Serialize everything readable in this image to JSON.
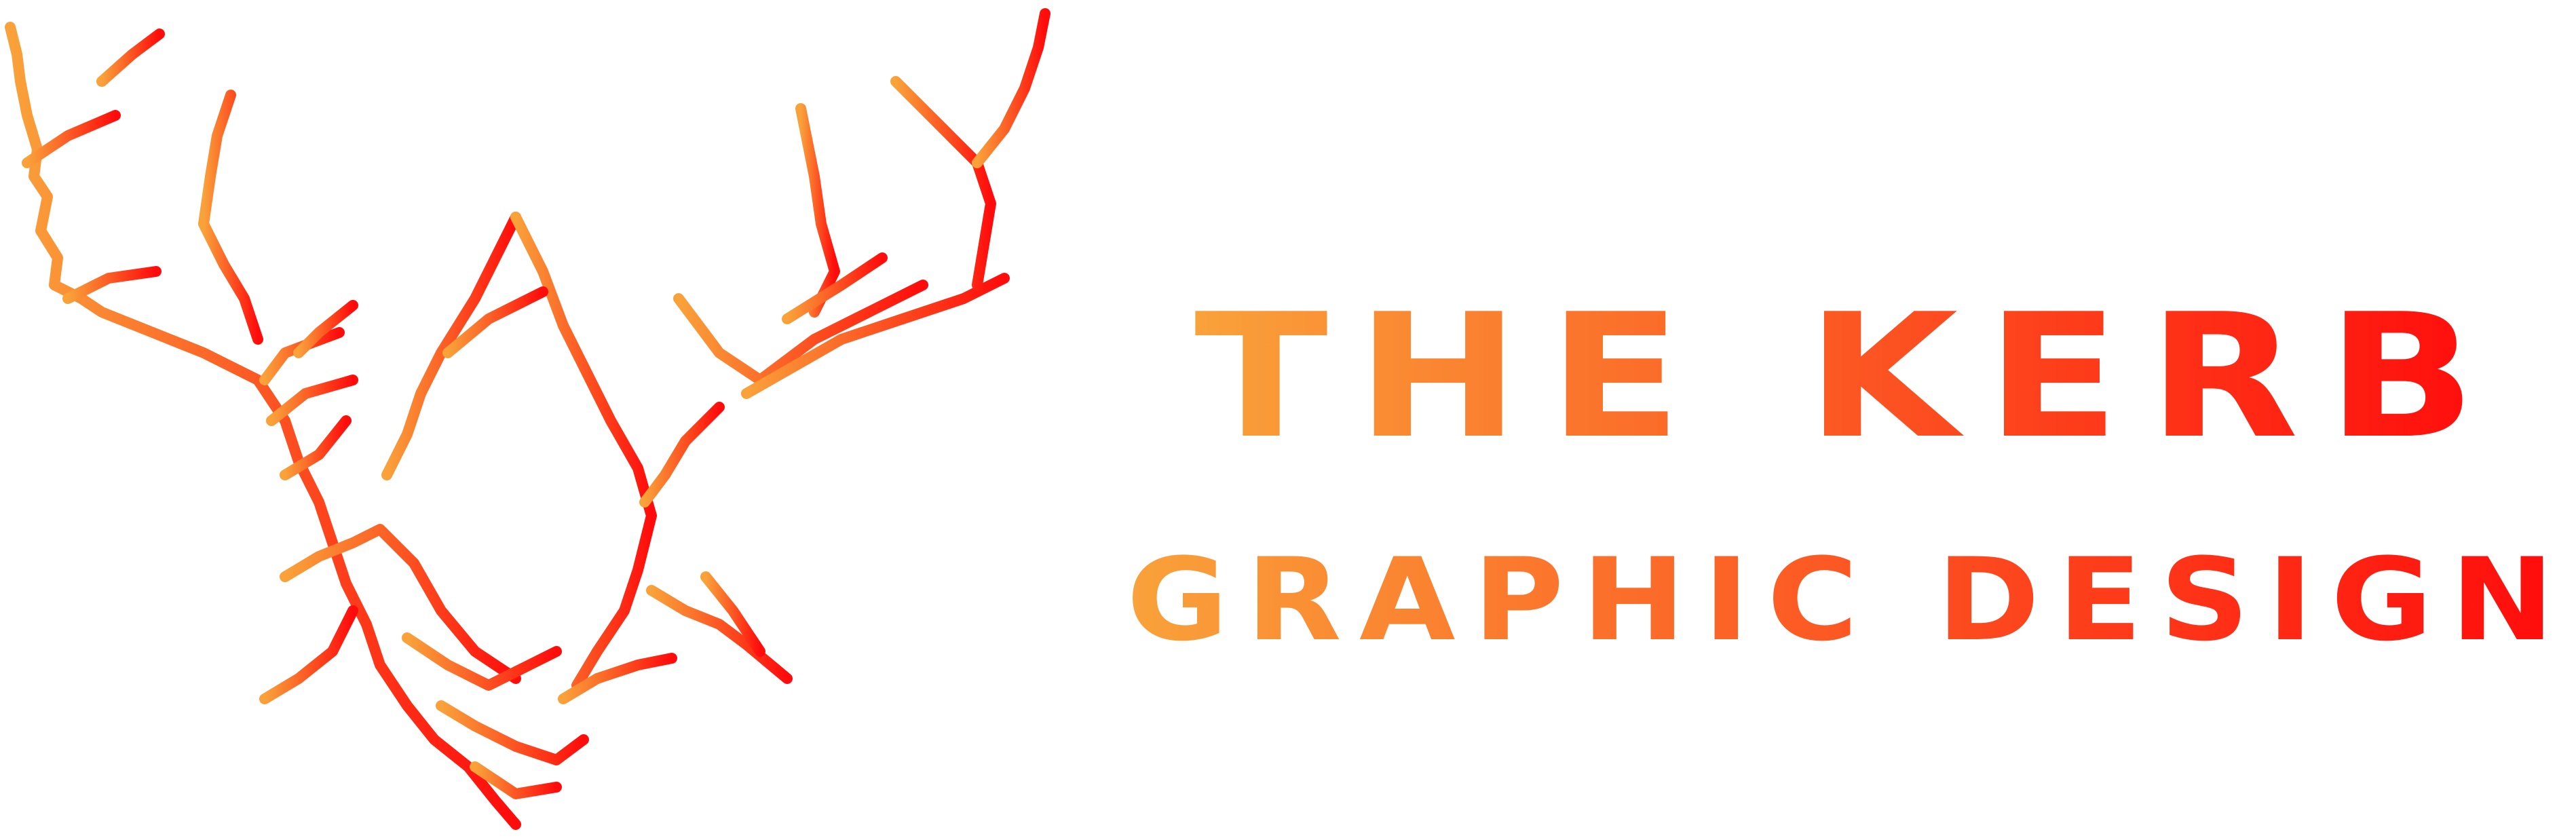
{
  "brand": {
    "title": "THE KERB",
    "subtitle": "GRAPHIC DESIGN",
    "gradient_start": "#F9A23A",
    "gradient_end": "#FF0B0B"
  }
}
